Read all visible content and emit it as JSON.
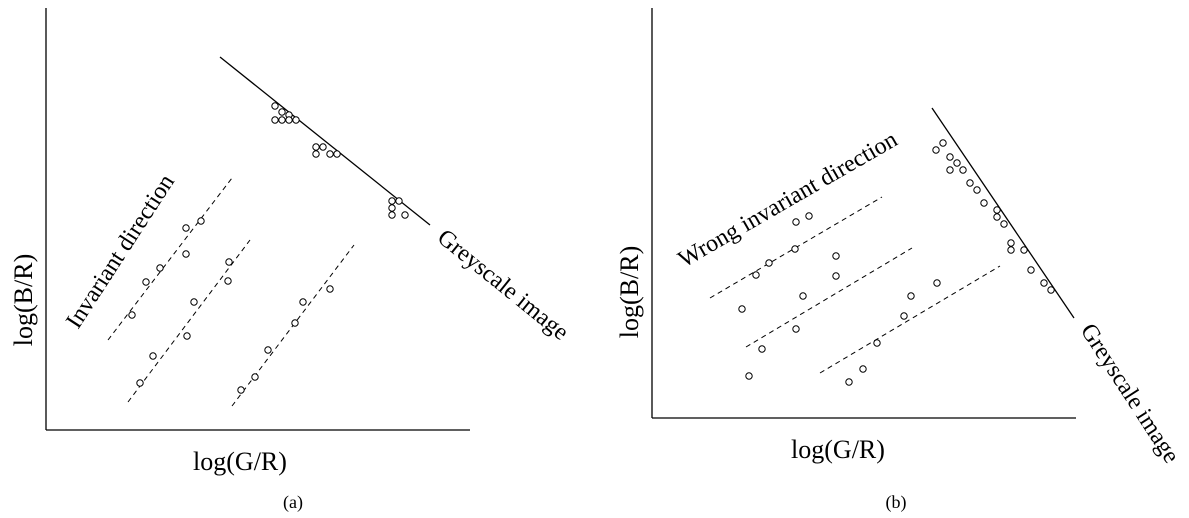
{
  "panels": [
    {
      "caption": "(a)",
      "xlabel": "log(G/R)",
      "ylabel": "log(B/R)",
      "invariant_label": "Invariant direction",
      "greyscale_label": "Greyscale image"
    },
    {
      "caption": "(b)",
      "xlabel": "log(G/R)",
      "ylabel": "log(B/R)",
      "invariant_label": "Wrong invariant direction",
      "greyscale_label": "Greyscale image"
    }
  ]
}
